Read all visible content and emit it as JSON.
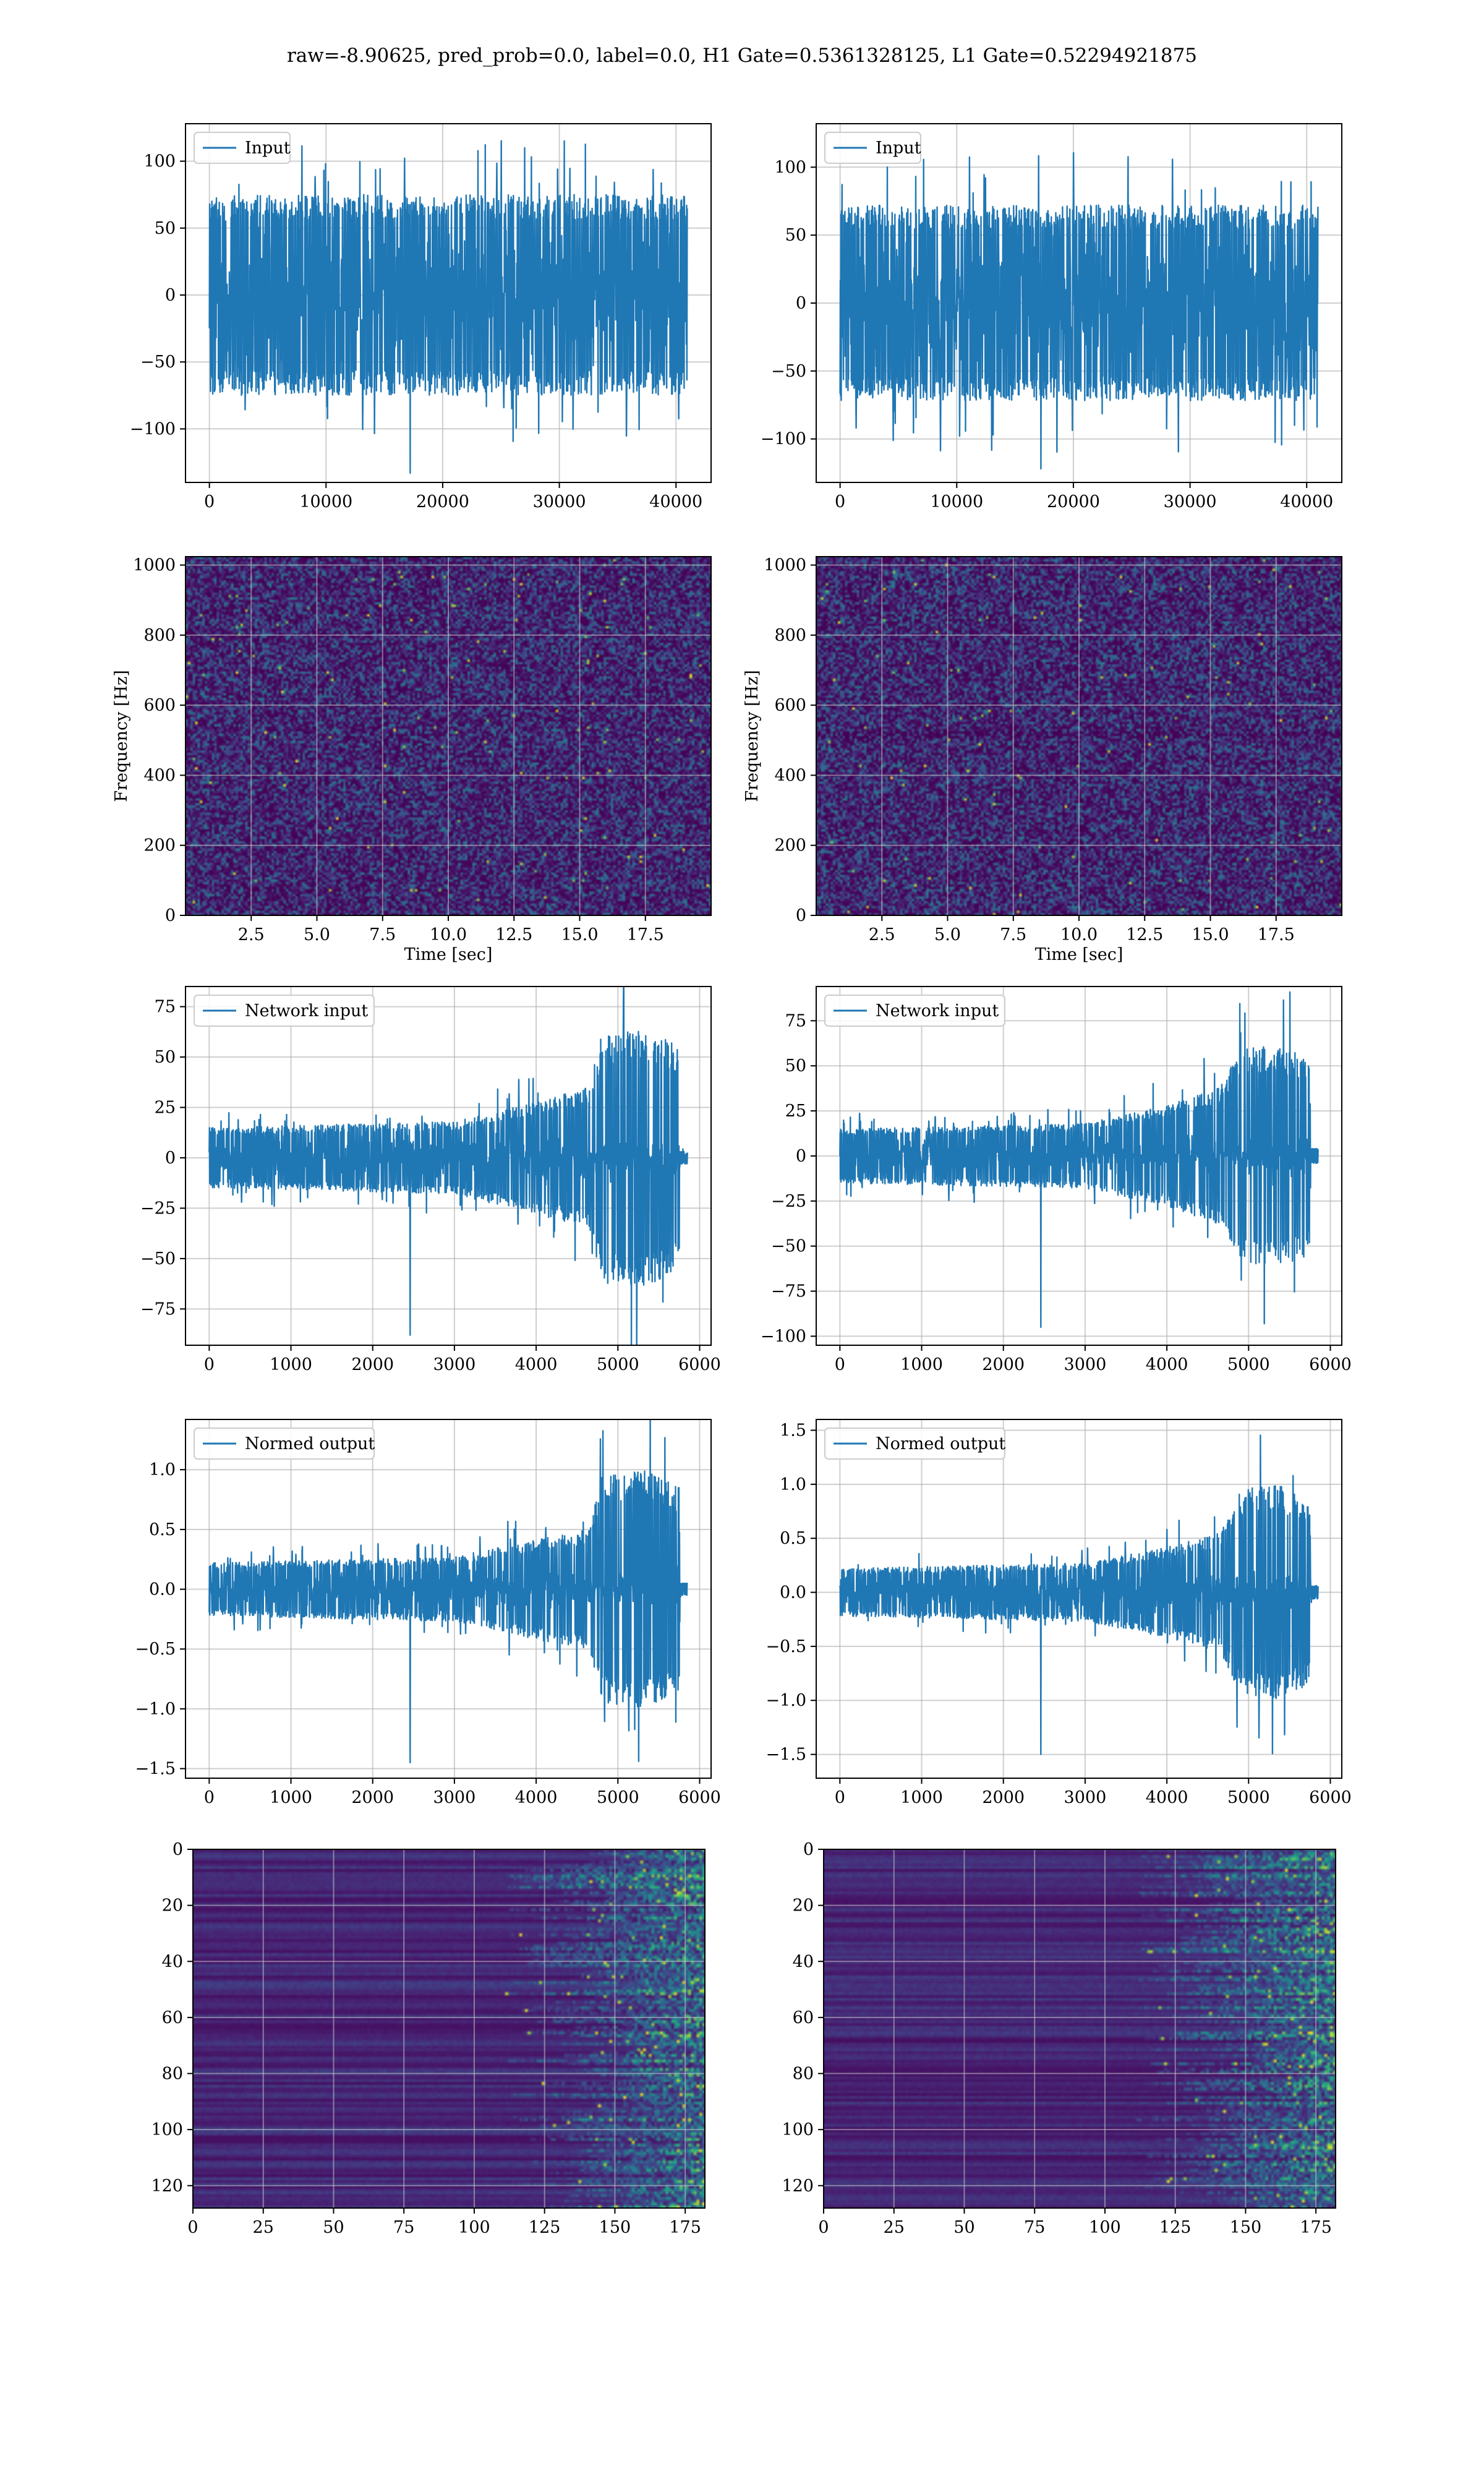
{
  "figure": {
    "suptitle": "raw=-8.90625, pred_prob=0.0, label=0.0, H1 Gate=0.5361328125, L1 Gate=0.52294921875"
  },
  "colors": {
    "line": "#1f77b4",
    "grid": "#b0b0b0",
    "axes": "#000000"
  },
  "chart_data": [
    {
      "id": "input-h1",
      "type": "line",
      "legend": "Input",
      "x_range": [
        0,
        40960
      ],
      "xlim": [
        -2048,
        43008
      ],
      "ylim": [
        -140,
        128
      ],
      "xticks": [
        0,
        10000,
        20000,
        30000,
        40000
      ],
      "yticks": [
        -100,
        -50,
        0,
        50,
        100
      ],
      "xtick_labels": [
        "0",
        "10000",
        "20000",
        "30000",
        "40000"
      ],
      "ytick_labels": [
        "−100",
        "−50",
        "0",
        "50",
        "100"
      ],
      "envelope": [
        [
          0,
          75
        ],
        [
          40960,
          75
        ]
      ],
      "noise_sd": 26,
      "peak_abs": 133,
      "legend_loc": "upper left",
      "grid": true
    },
    {
      "id": "input-l1",
      "type": "line",
      "legend": "Input",
      "x_range": [
        0,
        40960
      ],
      "xlim": [
        -2048,
        43008
      ],
      "ylim": [
        -132,
        132
      ],
      "xticks": [
        0,
        10000,
        20000,
        30000,
        40000
      ],
      "yticks": [
        -100,
        -50,
        0,
        50,
        100
      ],
      "xtick_labels": [
        "0",
        "10000",
        "20000",
        "30000",
        "40000"
      ],
      "ytick_labels": [
        "−100",
        "−50",
        "0",
        "50",
        "100"
      ],
      "envelope": [
        [
          0,
          72
        ],
        [
          40960,
          72
        ]
      ],
      "noise_sd": 24,
      "peak_abs": 122,
      "legend_loc": "upper left",
      "grid": true
    },
    {
      "id": "spec-h1",
      "type": "heatmap",
      "colormap": "viridis",
      "xlabel": "Time [sec]",
      "ylabel": "Frequency [Hz]",
      "xlim": [
        0,
        20
      ],
      "ylim": [
        0,
        1024
      ],
      "xticks": [
        2.5,
        5,
        7.5,
        10,
        12.5,
        15,
        17.5
      ],
      "yticks": [
        0,
        200,
        400,
        600,
        800,
        1000
      ],
      "xtick_labels": [
        "2.5",
        "5.0",
        "7.5",
        "10.0",
        "12.5",
        "15.0",
        "17.5"
      ],
      "ytick_labels": [
        "0",
        "200",
        "400",
        "600",
        "800",
        "1000"
      ],
      "grid": true
    },
    {
      "id": "spec-l1",
      "type": "heatmap",
      "colormap": "viridis",
      "xlabel": "Time [sec]",
      "ylabel": "Frequency [Hz]",
      "xlim": [
        0,
        20
      ],
      "ylim": [
        0,
        1024
      ],
      "xticks": [
        2.5,
        5,
        7.5,
        10,
        12.5,
        15,
        17.5
      ],
      "yticks": [
        0,
        200,
        400,
        600,
        800,
        1000
      ],
      "xtick_labels": [
        "2.5",
        "5.0",
        "7.5",
        "10.0",
        "12.5",
        "15.0",
        "17.5"
      ],
      "ytick_labels": [
        "0",
        "200",
        "400",
        "600",
        "800",
        "1000"
      ],
      "grid": true
    },
    {
      "id": "netin-h1",
      "type": "line",
      "legend": "Network input",
      "x_range": [
        0,
        5850
      ],
      "xlim": [
        -290,
        6140
      ],
      "ylim": [
        -93,
        85
      ],
      "xticks": [
        0,
        1000,
        2000,
        3000,
        4000,
        5000,
        6000
      ],
      "yticks": [
        -75,
        -50,
        -25,
        0,
        25,
        50,
        75
      ],
      "xtick_labels": [
        "0",
        "1000",
        "2000",
        "3000",
        "4000",
        "5000",
        "6000"
      ],
      "ytick_labels": [
        "−75",
        "−50",
        "−25",
        "0",
        "25",
        "50",
        "75"
      ],
      "envelope": [
        [
          0,
          15
        ],
        [
          3000,
          18
        ],
        [
          4000,
          28
        ],
        [
          4650,
          35
        ],
        [
          4800,
          62
        ],
        [
          5350,
          64
        ],
        [
          5750,
          55
        ],
        [
          5760,
          3
        ],
        [
          5850,
          3
        ]
      ],
      "noise_sd": 5,
      "peak_abs": 88,
      "legend_loc": "upper left",
      "grid": true
    },
    {
      "id": "netin-l1",
      "type": "line",
      "legend": "Network input",
      "x_range": [
        0,
        5850
      ],
      "xlim": [
        -290,
        6140
      ],
      "ylim": [
        -105,
        94
      ],
      "xticks": [
        0,
        1000,
        2000,
        3000,
        4000,
        5000,
        6000
      ],
      "yticks": [
        -100,
        -75,
        -50,
        -25,
        0,
        25,
        50,
        75
      ],
      "xtick_labels": [
        "0",
        "1000",
        "2000",
        "3000",
        "4000",
        "5000",
        "6000"
      ],
      "ytick_labels": [
        "−100",
        "−75",
        "−50",
        "−25",
        "0",
        "25",
        "50",
        "75"
      ],
      "envelope": [
        [
          0,
          15
        ],
        [
          3000,
          18
        ],
        [
          4000,
          28
        ],
        [
          4650,
          38
        ],
        [
          4900,
          60
        ],
        [
          5350,
          62
        ],
        [
          5750,
          55
        ],
        [
          5760,
          4
        ],
        [
          5850,
          4
        ]
      ],
      "noise_sd": 5,
      "peak_abs": 95,
      "legend_loc": "upper left",
      "grid": true
    },
    {
      "id": "norm-h1",
      "type": "line",
      "legend": "Normed output",
      "x_range": [
        0,
        5850
      ],
      "xlim": [
        -290,
        6140
      ],
      "ylim": [
        -1.58,
        1.42
      ],
      "xticks": [
        0,
        1000,
        2000,
        3000,
        4000,
        5000,
        6000
      ],
      "yticks": [
        -1.5,
        -1.0,
        -0.5,
        0.0,
        0.5,
        1.0
      ],
      "xtick_labels": [
        "0",
        "1000",
        "2000",
        "3000",
        "4000",
        "5000",
        "6000"
      ],
      "ytick_labels": [
        "−1.5",
        "−1.0",
        "−0.5",
        "0.0",
        "0.5",
        "1.0"
      ],
      "envelope": [
        [
          0,
          0.22
        ],
        [
          3000,
          0.27
        ],
        [
          4000,
          0.42
        ],
        [
          4650,
          0.5
        ],
        [
          4800,
          0.95
        ],
        [
          5350,
          1.0
        ],
        [
          5750,
          0.85
        ],
        [
          5760,
          0.05
        ],
        [
          5850,
          0.05
        ]
      ],
      "noise_sd": 0.08,
      "peak_abs": 1.45,
      "legend_loc": "upper left",
      "grid": true
    },
    {
      "id": "norm-l1",
      "type": "line",
      "legend": "Normed output",
      "x_range": [
        0,
        5850
      ],
      "xlim": [
        -290,
        6140
      ],
      "ylim": [
        -1.72,
        1.6
      ],
      "xticks": [
        0,
        1000,
        2000,
        3000,
        4000,
        5000,
        6000
      ],
      "yticks": [
        -1.5,
        -1.0,
        -0.5,
        0.0,
        0.5,
        1.0,
        1.5
      ],
      "xtick_labels": [
        "0",
        "1000",
        "2000",
        "3000",
        "4000",
        "5000",
        "6000"
      ],
      "ytick_labels": [
        "−1.5",
        "−1.0",
        "−0.5",
        "0.0",
        "0.5",
        "1.0",
        "1.5"
      ],
      "envelope": [
        [
          0,
          0.22
        ],
        [
          3000,
          0.27
        ],
        [
          4000,
          0.42
        ],
        [
          4650,
          0.55
        ],
        [
          4900,
          0.95
        ],
        [
          5350,
          1.0
        ],
        [
          5750,
          0.85
        ],
        [
          5760,
          0.06
        ],
        [
          5850,
          0.06
        ]
      ],
      "noise_sd": 0.08,
      "peak_abs": 1.5,
      "legend_loc": "upper left",
      "grid": true
    },
    {
      "id": "act-h1",
      "type": "heatmap",
      "colormap": "viridis",
      "xlim": [
        0,
        182
      ],
      "ylim": [
        128,
        0
      ],
      "xticks": [
        0,
        25,
        50,
        75,
        100,
        125,
        150,
        175
      ],
      "yticks": [
        0,
        20,
        40,
        60,
        80,
        100,
        120
      ],
      "xtick_labels": [
        "0",
        "25",
        "50",
        "75",
        "100",
        "125",
        "150",
        "175"
      ],
      "ytick_labels": [
        "0",
        "20",
        "40",
        "60",
        "80",
        "100",
        "120"
      ],
      "grid": true
    },
    {
      "id": "act-l1",
      "type": "heatmap",
      "colormap": "viridis",
      "xlim": [
        0,
        182
      ],
      "ylim": [
        128,
        0
      ],
      "xticks": [
        0,
        25,
        50,
        75,
        100,
        125,
        150,
        175
      ],
      "yticks": [
        0,
        20,
        40,
        60,
        80,
        100,
        120
      ],
      "xtick_labels": [
        "0",
        "25",
        "50",
        "75",
        "100",
        "125",
        "150",
        "175"
      ],
      "ytick_labels": [
        "0",
        "20",
        "40",
        "60",
        "80",
        "100",
        "120"
      ],
      "grid": true
    }
  ]
}
